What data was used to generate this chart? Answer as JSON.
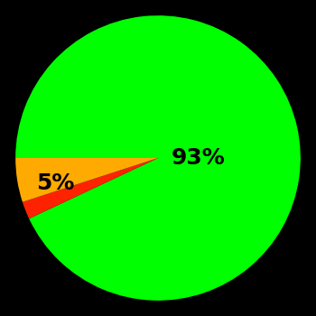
{
  "slices": [
    93,
    2,
    5
  ],
  "colors": [
    "#00ff00",
    "#ff2200",
    "#ffaa00"
  ],
  "labels": [
    "93%",
    "",
    "5%"
  ],
  "background_color": "#000000",
  "startangle": 180,
  "label_fontsize": 18,
  "label_fontweight": "bold",
  "label_color": "#000000"
}
